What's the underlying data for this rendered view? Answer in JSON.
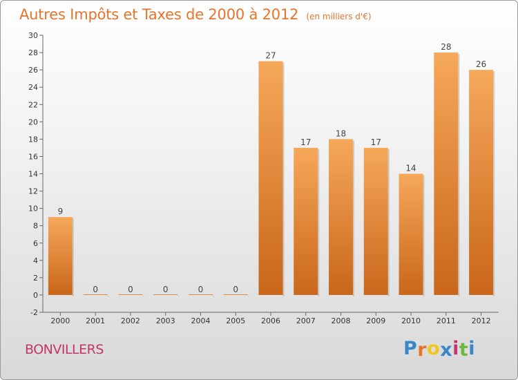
{
  "header": {
    "title": "Autres Impôts et Taxes de 2000 à 2012",
    "subtitle": "(en milliers d'€)"
  },
  "footer": {
    "commune": "BONVILLERS",
    "logo": {
      "letters": [
        "P",
        "r",
        "o",
        "x",
        "i",
        "t",
        "i"
      ],
      "colors": [
        "#3a86c8",
        "#e8742a",
        "#f2c61f",
        "#3a86c8",
        "#c4356b",
        "#6fb83f",
        "#3a86c8"
      ]
    }
  },
  "colors": {
    "bar_light": "#f6a85a",
    "bar_dark": "#c9661a",
    "title": "#e8742a",
    "commune": "#c4356b"
  },
  "chart_data": {
    "type": "bar",
    "categories": [
      "2000",
      "2001",
      "2002",
      "2003",
      "2004",
      "2005",
      "2006",
      "2007",
      "2008",
      "2009",
      "2010",
      "2011",
      "2012"
    ],
    "values": [
      9,
      0,
      0,
      0,
      0,
      0,
      27,
      17,
      18,
      17,
      14,
      28,
      26
    ],
    "data_labels": [
      "9",
      "0",
      "0",
      "0",
      "0",
      "0",
      "27",
      "17",
      "18",
      "17",
      "14",
      "28",
      "26"
    ],
    "y_ticks": [
      "-2",
      "0",
      "2",
      "4",
      "6",
      "8",
      "10",
      "12",
      "14",
      "16",
      "18",
      "20",
      "22",
      "24",
      "26",
      "28",
      "30"
    ],
    "ylim": [
      -2,
      30
    ],
    "grid": false,
    "legend": "none"
  }
}
